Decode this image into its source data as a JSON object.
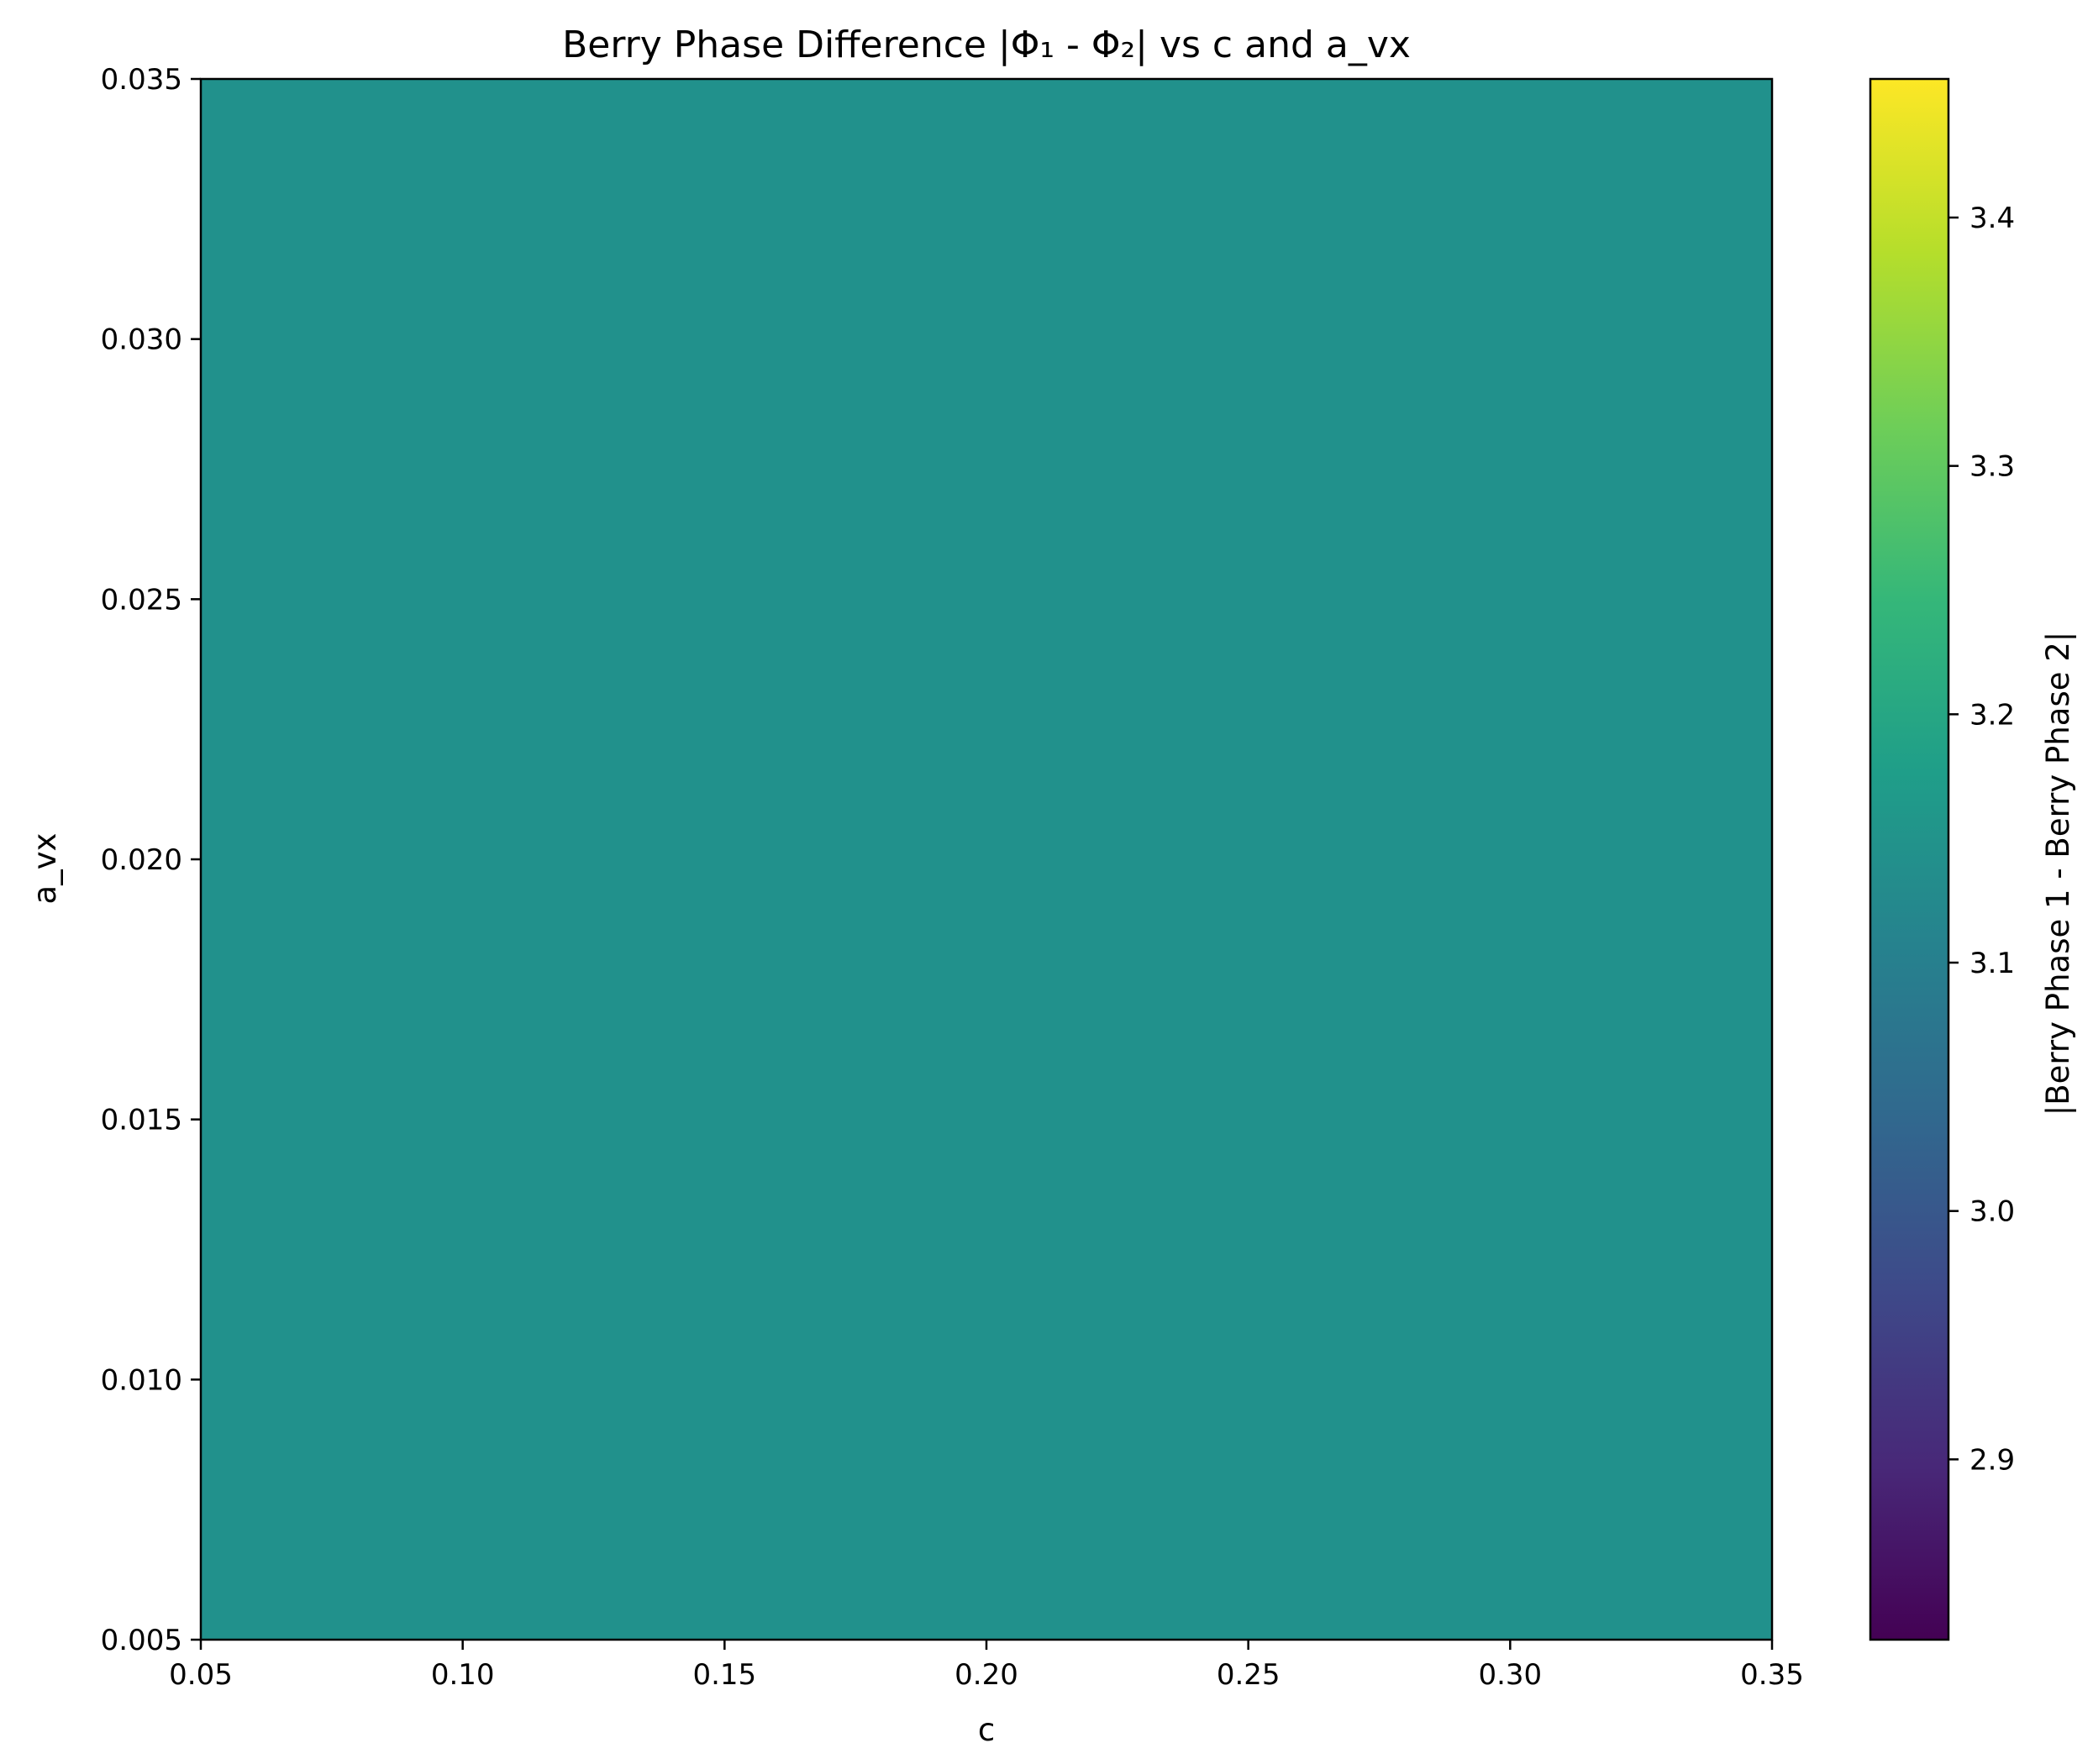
{
  "chart_data": {
    "type": "heatmap",
    "title": "Berry Phase Difference |Φ₁ - Φ₂| vs c and a_vx",
    "xlabel": "c",
    "ylabel": "a_vx",
    "xlim": [
      0.05,
      0.35
    ],
    "ylim": [
      0.005,
      0.035
    ],
    "x_ticks": [
      "0.05",
      "0.10",
      "0.15",
      "0.20",
      "0.25",
      "0.30",
      "0.35"
    ],
    "y_ticks": [
      "0.005",
      "0.010",
      "0.015",
      "0.020",
      "0.025",
      "0.030",
      "0.035"
    ],
    "x": [
      0.05,
      0.35
    ],
    "y": [
      0.005,
      0.035
    ],
    "values": [
      [
        3.1416
      ]
    ],
    "fill_color": "#21918c",
    "colorbar": {
      "label": "|Berry Phase 1 - Berry Phase 2|",
      "range": [
        2.8274,
        3.4558
      ],
      "ticks": [
        "2.9",
        "3.0",
        "3.1",
        "3.2",
        "3.3",
        "3.4"
      ],
      "colormap": "viridis",
      "colormap_stops": [
        "#440154",
        "#482878",
        "#3e4989",
        "#31688e",
        "#26828e",
        "#1f9e89",
        "#35b779",
        "#6ece58",
        "#b5de2b",
        "#fde725"
      ]
    }
  }
}
